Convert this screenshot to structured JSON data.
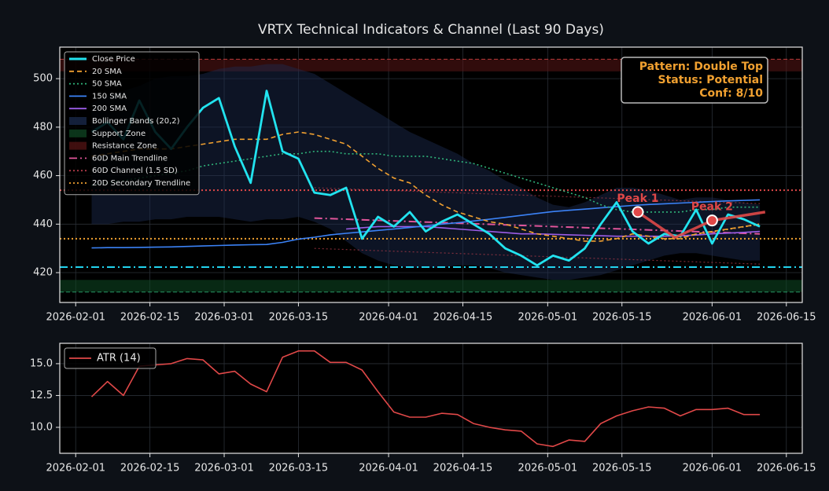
{
  "chart_data": [
    {
      "type": "line",
      "title": "VRTX Technical Indicators & Channel (Last 90 Days)",
      "x": [
        "2026-02-04",
        "2026-02-07",
        "2026-02-10",
        "2026-02-13",
        "2026-02-16",
        "2026-02-19",
        "2026-02-22",
        "2026-02-25",
        "2026-02-28",
        "2026-03-03",
        "2026-03-06",
        "2026-03-09",
        "2026-03-12",
        "2026-03-15",
        "2026-03-18",
        "2026-03-21",
        "2026-03-24",
        "2026-03-27",
        "2026-03-30",
        "2026-04-02",
        "2026-04-05",
        "2026-04-08",
        "2026-04-11",
        "2026-04-14",
        "2026-04-17",
        "2026-04-20",
        "2026-04-23",
        "2026-04-26",
        "2026-04-29",
        "2026-05-02",
        "2026-05-05",
        "2026-05-08",
        "2026-05-11",
        "2026-05-14",
        "2026-05-17",
        "2026-05-20",
        "2026-05-23",
        "2026-05-26",
        "2026-05-29",
        "2026-06-01",
        "2026-06-04",
        "2026-06-07",
        "2026-06-10"
      ],
      "xlim": [
        "2026-01-29",
        "2026-06-18"
      ],
      "xticks": [
        "2026-02-01",
        "2026-02-15",
        "2026-03-01",
        "2026-03-15",
        "2026-04-01",
        "2026-04-15",
        "2026-05-01",
        "2026-05-15",
        "2026-06-01",
        "2026-06-15"
      ],
      "ylim": [
        407.7,
        513
      ],
      "yticks": [
        420,
        440,
        460,
        480,
        500
      ],
      "grid": true,
      "legend": "upper left",
      "series": [
        {
          "name": "Close Price",
          "color": "#22e3ef",
          "style": "solid",
          "values": [
            478,
            482,
            475,
            491,
            478,
            471,
            480,
            488,
            492,
            472,
            457,
            495,
            470,
            467,
            453,
            452,
            455,
            434,
            443,
            439,
            445,
            437,
            441,
            444,
            440,
            436,
            430,
            427,
            423,
            427,
            425,
            430,
            440,
            449,
            437,
            432,
            436,
            435,
            446,
            432,
            444,
            442,
            439
          ]
        },
        {
          "name": "20 SMA",
          "color": "#f0a030",
          "style": "dashed",
          "values": [
            468,
            469,
            470,
            471,
            471,
            471,
            472,
            473,
            474,
            475,
            475,
            475,
            477,
            478,
            477,
            475,
            473,
            468,
            463,
            459,
            457,
            452,
            448,
            445,
            443,
            441,
            440,
            438,
            436,
            435,
            434,
            433,
            433,
            434,
            436,
            435,
            434,
            434,
            436,
            437,
            438,
            439,
            440
          ]
        },
        {
          "name": "50 SMA",
          "color": "#2fb37a",
          "style": "dotted",
          "values": [
            456,
            457,
            458,
            459,
            460,
            461,
            462,
            464,
            465,
            466,
            467,
            468,
            469,
            469,
            470,
            470,
            469,
            469,
            469,
            468,
            468,
            468,
            467,
            466,
            465,
            463,
            461,
            459,
            457,
            455,
            453,
            451,
            448,
            446,
            445,
            445,
            445,
            445,
            446,
            446,
            447,
            447,
            447
          ]
        },
        {
          "name": "150 SMA",
          "color": "#3b82f6",
          "style": "solid",
          "values": [
            430.2,
            430.3,
            430.3,
            430.4,
            430.5,
            430.6,
            430.8,
            431,
            431.2,
            431.4,
            431.5,
            431.6,
            432.5,
            433.8,
            434.6,
            435.6,
            436.2,
            436.8,
            437.4,
            438,
            438.6,
            439.3,
            440,
            440.6,
            441.3,
            442,
            442.8,
            443.6,
            444.4,
            445.2,
            445.7,
            446.2,
            446.7,
            447.2,
            447.7,
            448.1,
            448.4,
            448.7,
            449,
            449.3,
            449.6,
            449.8,
            450
          ]
        },
        {
          "name": "200 SMA",
          "color": "#9b5de5",
          "style": "solid",
          "values": [
            null,
            null,
            null,
            null,
            null,
            null,
            null,
            null,
            null,
            null,
            null,
            null,
            null,
            null,
            null,
            null,
            438,
            438.5,
            439,
            439,
            439,
            439,
            438.5,
            438,
            437.5,
            437,
            436.5,
            436,
            436,
            435.8,
            435.6,
            435.4,
            435.2,
            435,
            435,
            435,
            435,
            435.2,
            435.5,
            436,
            436.3,
            436.6,
            437
          ]
        }
      ],
      "bollinger": {
        "name": "Bollinger Bands (20,2)",
        "color": "#1c2d52",
        "upper": [
          490,
          493,
          495,
          497,
          500,
          501,
          501,
          502,
          504,
          505,
          505,
          506,
          506,
          504,
          502,
          498,
          494,
          490,
          486,
          482,
          478,
          475,
          472,
          469,
          465,
          462,
          458,
          455,
          451,
          448,
          447,
          449,
          452,
          455,
          455,
          454,
          452,
          450,
          451,
          451,
          450,
          449,
          448
        ],
        "lower": [
          440,
          440,
          441,
          441,
          442,
          442,
          443,
          443,
          443,
          442,
          441,
          442,
          442,
          443,
          441,
          438,
          433,
          428,
          425,
          423,
          422,
          422,
          422,
          423,
          423,
          422,
          420,
          419,
          418,
          417,
          417,
          418,
          419,
          421,
          423,
          425,
          427,
          428,
          428,
          427,
          426,
          425,
          425
        ]
      },
      "support_zone": {
        "name": "Support Zone",
        "color": "#0f4a25",
        "edge_color": "#2fb37a",
        "range": [
          412,
          417
        ]
      },
      "resistance_zone": {
        "name": "Resistance Zone",
        "color": "#5a1616",
        "edge_color": "#e04848",
        "range": [
          503,
          508
        ]
      },
      "main_trendline": {
        "name": "60D Main Trendline",
        "color": "#e0559a",
        "style": "dashdot",
        "x": [
          "2026-03-18",
          "2026-06-10"
        ],
        "values": [
          442.5,
          436
        ]
      },
      "channel": {
        "name": "60D Channel (1.5 SD)",
        "color": "#b03a48",
        "style": "dotted",
        "x": [
          "2026-03-18",
          "2026-06-10"
        ],
        "upper": [
          455,
          448.5
        ],
        "lower": [
          430,
          423.5
        ]
      },
      "secondary_trendline": {
        "name": "20D Secondary Trendline",
        "color": "#f0a030",
        "style": "dotted",
        "x": [
          "2026-05-23",
          "2026-06-10"
        ],
        "values": [
          433.7,
          440
        ]
      },
      "hlines": [
        {
          "value": 454,
          "color": "#e04848",
          "style": "dotted"
        },
        {
          "value": 434,
          "color": "#f0a030",
          "style": "dotted"
        },
        {
          "value": 422.3,
          "color": "#22d3ee",
          "style": "dashdot"
        }
      ],
      "pattern": {
        "color": "#e04848",
        "x": [
          "2026-05-18",
          "2026-05-25",
          "2026-06-01",
          "2026-06-11"
        ],
        "values": [
          445,
          434.5,
          441.5,
          445
        ],
        "peaks": [
          {
            "label": "Peak 1",
            "x": "2026-05-18",
            "value": 445
          },
          {
            "label": "Peak 2",
            "x": "2026-06-01",
            "value": 441.5
          }
        ]
      },
      "info_box": [
        "Pattern: Double Top",
        "Status: Potential",
        "Conf: 8/10"
      ]
    },
    {
      "type": "line",
      "x": [
        "2026-02-04",
        "2026-02-07",
        "2026-02-10",
        "2026-02-13",
        "2026-02-16",
        "2026-02-19",
        "2026-02-22",
        "2026-02-25",
        "2026-02-28",
        "2026-03-03",
        "2026-03-06",
        "2026-03-09",
        "2026-03-12",
        "2026-03-15",
        "2026-03-18",
        "2026-03-21",
        "2026-03-24",
        "2026-03-27",
        "2026-03-30",
        "2026-04-02",
        "2026-04-05",
        "2026-04-08",
        "2026-04-11",
        "2026-04-14",
        "2026-04-17",
        "2026-04-20",
        "2026-04-23",
        "2026-04-26",
        "2026-04-29",
        "2026-05-02",
        "2026-05-05",
        "2026-05-08",
        "2026-05-11",
        "2026-05-14",
        "2026-05-17",
        "2026-05-20",
        "2026-05-23",
        "2026-05-26",
        "2026-05-29",
        "2026-06-01",
        "2026-06-04",
        "2026-06-07",
        "2026-06-10"
      ],
      "xlim": [
        "2026-01-29",
        "2026-06-18"
      ],
      "xticks": [
        "2026-02-01",
        "2026-02-15",
        "2026-03-01",
        "2026-03-15",
        "2026-04-01",
        "2026-04-15",
        "2026-05-01",
        "2026-05-15",
        "2026-06-01",
        "2026-06-15"
      ],
      "ylim": [
        7.96,
        16.6
      ],
      "yticks": [
        {
          "value": 10,
          "label": "10.0"
        },
        {
          "value": 12.5,
          "label": "12.5"
        },
        {
          "value": 15,
          "label": "15.0"
        }
      ],
      "grid": true,
      "legend": "upper left",
      "series": [
        {
          "name": "ATR (14)",
          "color": "#e04848",
          "style": "solid",
          "values": [
            12.4,
            13.6,
            12.5,
            14.8,
            14.9,
            15.0,
            15.4,
            15.3,
            14.2,
            14.4,
            13.4,
            12.8,
            15.5,
            16.0,
            16.0,
            15.1,
            15.1,
            14.5,
            12.8,
            11.2,
            10.8,
            10.8,
            11.1,
            11.0,
            10.3,
            10.0,
            9.8,
            9.7,
            8.7,
            8.5,
            9.0,
            8.9,
            10.3,
            10.9,
            11.3,
            11.6,
            11.5,
            10.9,
            11.4,
            11.4,
            11.5,
            11.0,
            11.0
          ]
        }
      ]
    }
  ]
}
